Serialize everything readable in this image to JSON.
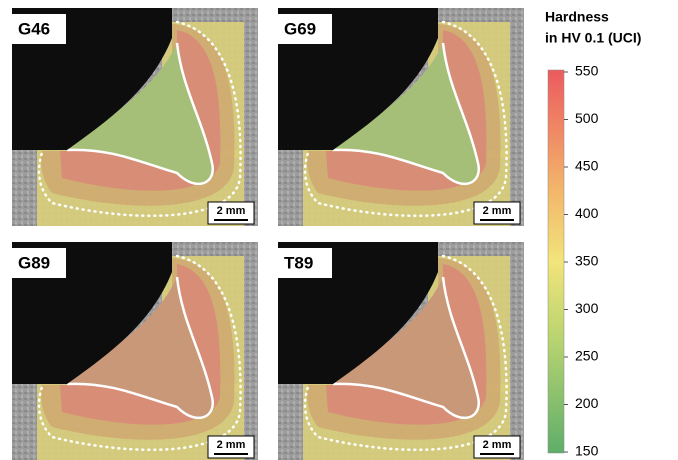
{
  "panels": [
    {
      "label": "G46",
      "scale": "2 mm"
    },
    {
      "label": "G69",
      "scale": "2 mm"
    },
    {
      "label": "G89",
      "scale": "2 mm"
    },
    {
      "label": "T89",
      "scale": "2 mm"
    }
  ],
  "colorbar": {
    "title": [
      "Hardness",
      "in HV 0.1 (UCI)"
    ],
    "lim": [
      150,
      550
    ],
    "ticks": [
      550,
      500,
      450,
      400,
      350,
      300,
      250,
      200,
      150
    ]
  }
}
